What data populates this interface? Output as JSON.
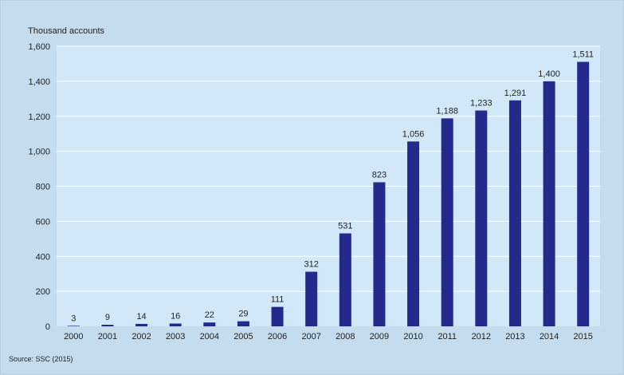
{
  "chart_data": {
    "type": "bar",
    "title": "",
    "ylabel": "Thousand accounts",
    "xlabel": "",
    "categories": [
      "2000",
      "2001",
      "2002",
      "2003",
      "2004",
      "2005",
      "2006",
      "2007",
      "2008",
      "2009",
      "2010",
      "2011",
      "2012",
      "2013",
      "2014",
      "2015"
    ],
    "values": [
      3,
      9,
      14,
      16,
      22,
      29,
      111,
      312,
      531,
      823,
      1056,
      1188,
      1233,
      1291,
      1400,
      1511
    ],
    "data_labels": [
      "3",
      "9",
      "14",
      "16",
      "22",
      "29",
      "111",
      "312",
      "531",
      "823",
      "1,056",
      "1,188",
      "1,233",
      "1,291",
      "1,400",
      "1,511"
    ],
    "ylim": [
      0,
      1600
    ],
    "yticks": [
      0,
      200,
      400,
      600,
      800,
      1000,
      1200,
      1400,
      1600
    ],
    "ytick_labels": [
      "0",
      "200",
      "400",
      "600",
      "800",
      "1,000",
      "1,200",
      "1,400",
      "1,600"
    ],
    "grid": true,
    "legend": "none",
    "bar_color": "#232a8c",
    "plot_background": "#d2e8f8",
    "gridline_color": "#ffffff"
  },
  "source": "Source: SSC  (2015)"
}
